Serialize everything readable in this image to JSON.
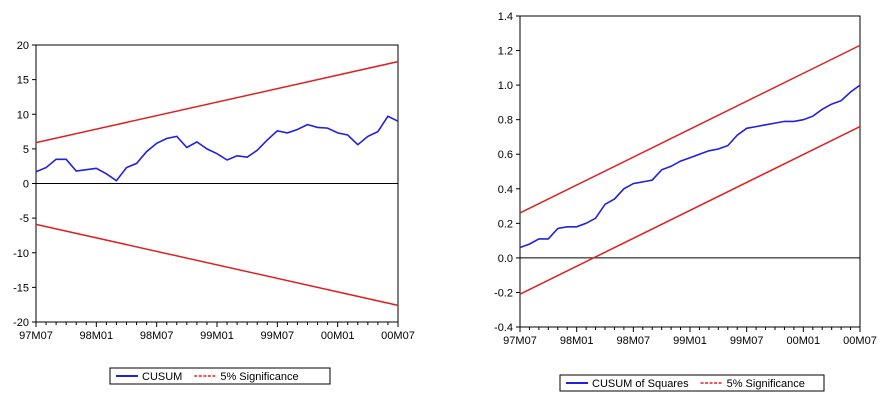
{
  "chart_data": [
    {
      "type": "line",
      "x_ticks": [
        "97M07",
        "98M01",
        "98M07",
        "99M01",
        "99M07",
        "00M01",
        "00M07"
      ],
      "xlim": [
        "97M07",
        "00M07"
      ],
      "y_ticks": [
        "20",
        "15",
        "10",
        "5",
        "0",
        "-5",
        "-10",
        "-15",
        "-20"
      ],
      "ylim": [
        -20,
        20
      ],
      "zero_line": true,
      "legend_position": "bottom",
      "colors": {
        "stat": "#2020e0",
        "bounds": "#e02020"
      },
      "series": [
        {
          "name": "CUSUM",
          "x": [
            "97M07",
            "97M08",
            "97M09",
            "97M10",
            "97M11",
            "97M12",
            "98M01",
            "98M02",
            "98M03",
            "98M04",
            "98M05",
            "98M06",
            "98M07",
            "98M08",
            "98M09",
            "98M10",
            "98M11",
            "98M12",
            "99M01",
            "99M02",
            "99M03",
            "99M04",
            "99M05",
            "99M06",
            "99M07",
            "99M08",
            "99M09",
            "99M10",
            "99M11",
            "99M12",
            "00M01",
            "00M02",
            "00M03",
            "00M04",
            "00M05",
            "00M06",
            "00M07"
          ],
          "values": [
            1.7,
            2.3,
            3.5,
            3.5,
            1.8,
            2.0,
            2.2,
            1.4,
            0.4,
            2.3,
            2.9,
            4.6,
            5.8,
            6.5,
            6.8,
            5.2,
            6.0,
            5.0,
            4.3,
            3.4,
            4.0,
            3.8,
            4.8,
            6.3,
            7.6,
            7.3,
            7.8,
            8.5,
            8.1,
            8.0,
            7.3,
            7.0,
            5.6,
            6.8,
            7.5,
            9.7,
            9.0
          ]
        },
        {
          "name": "5% Significance",
          "x": [
            "97M07",
            "00M07"
          ],
          "upper": [
            5.9,
            17.6
          ],
          "lower": [
            -5.9,
            -17.6
          ]
        }
      ]
    },
    {
      "type": "line",
      "x_ticks": [
        "97M07",
        "98M01",
        "98M07",
        "99M01",
        "99M07",
        "00M01",
        "00M07"
      ],
      "xlim": [
        "97M07",
        "00M07"
      ],
      "y_ticks": [
        "1.4",
        "1.2",
        "1.0",
        "0.8",
        "0.6",
        "0.4",
        "0.2",
        "0.0",
        "-0.2",
        "-0.4"
      ],
      "ylim": [
        -0.4,
        1.4
      ],
      "zero_line": true,
      "legend_position": "bottom",
      "colors": {
        "stat": "#2020e0",
        "bounds": "#e02020"
      },
      "series": [
        {
          "name": "CUSUM of Squares",
          "x": [
            "97M07",
            "97M08",
            "97M09",
            "97M10",
            "97M11",
            "97M12",
            "98M01",
            "98M02",
            "98M03",
            "98M04",
            "98M05",
            "98M06",
            "98M07",
            "98M08",
            "98M09",
            "98M10",
            "98M11",
            "98M12",
            "99M01",
            "99M02",
            "99M03",
            "99M04",
            "99M05",
            "99M06",
            "99M07",
            "99M08",
            "99M09",
            "99M10",
            "99M11",
            "99M12",
            "00M01",
            "00M02",
            "00M03",
            "00M04",
            "00M05",
            "00M06",
            "00M07"
          ],
          "values": [
            0.06,
            0.08,
            0.11,
            0.11,
            0.17,
            0.18,
            0.18,
            0.2,
            0.23,
            0.31,
            0.34,
            0.4,
            0.43,
            0.44,
            0.45,
            0.51,
            0.53,
            0.56,
            0.58,
            0.6,
            0.62,
            0.63,
            0.65,
            0.71,
            0.75,
            0.76,
            0.77,
            0.78,
            0.79,
            0.79,
            0.8,
            0.82,
            0.86,
            0.89,
            0.91,
            0.96,
            1.0
          ]
        },
        {
          "name": "5% Significance",
          "x": [
            "97M07",
            "00M07"
          ],
          "upper": [
            0.26,
            1.23
          ],
          "lower": [
            -0.21,
            0.76
          ]
        }
      ]
    }
  ]
}
